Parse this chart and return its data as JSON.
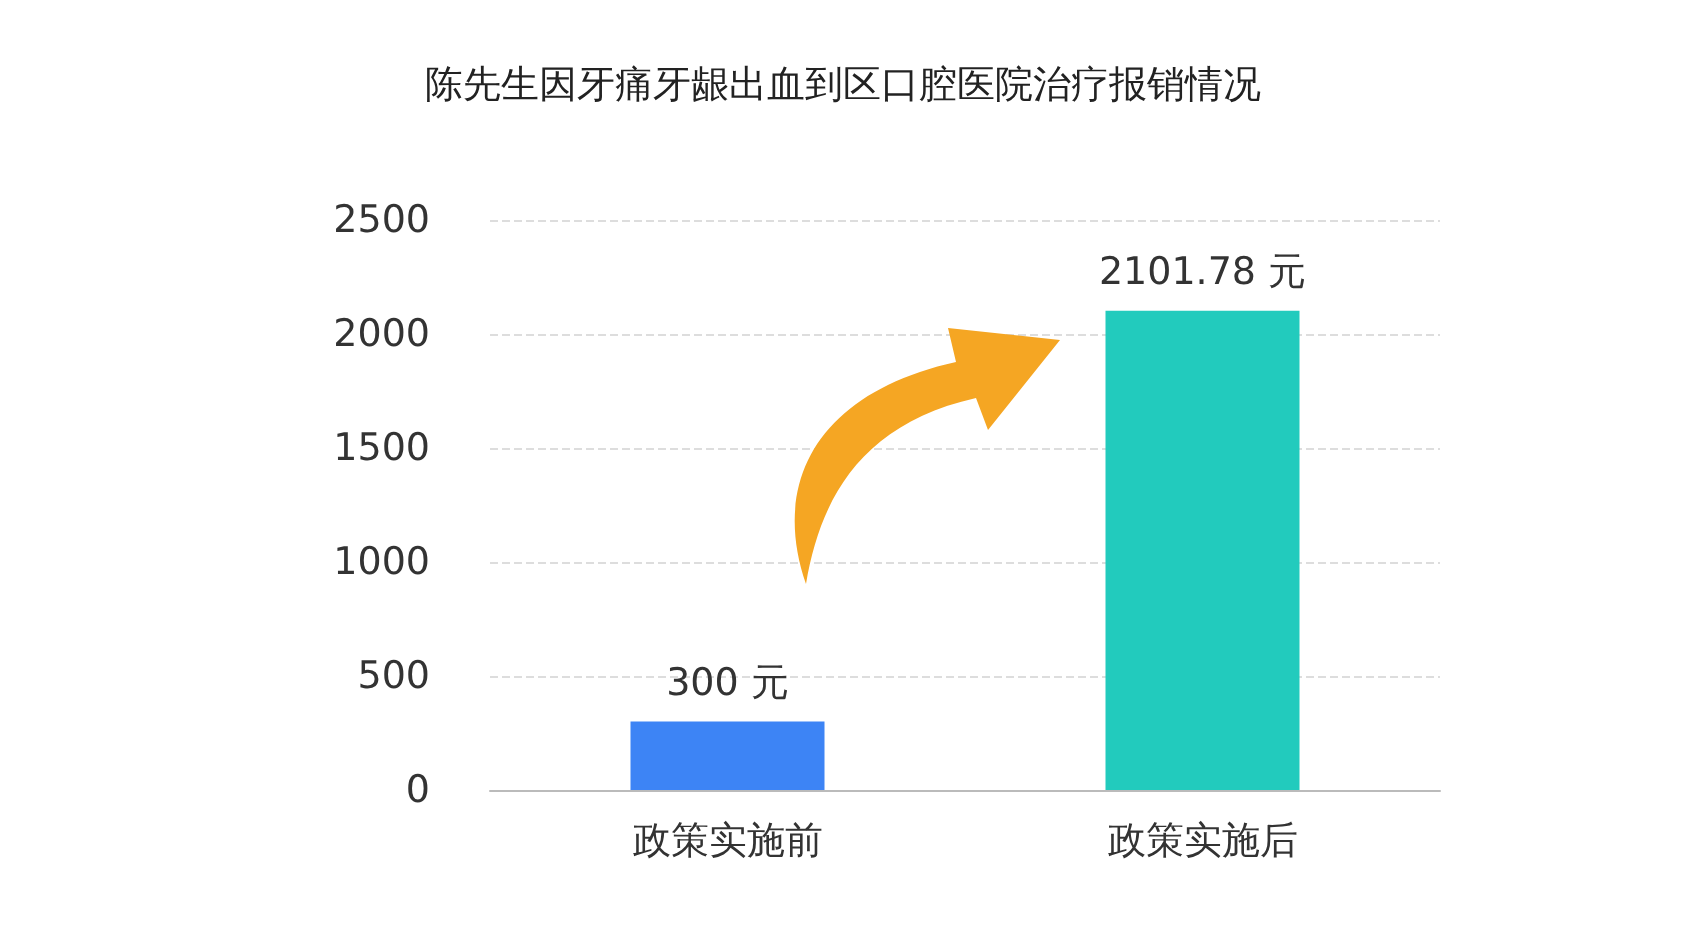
{
  "chart_data": {
    "type": "bar",
    "title": "陈先生因牙痛牙龈出血到区口腔医院治疗报销情况",
    "categories": [
      "政策实施前",
      "政策实施后"
    ],
    "values": [
      300,
      2101.78
    ],
    "colors": [
      "#3d84f5",
      "#22cbbd"
    ],
    "value_labels": [
      "300 元",
      "2101.78 元"
    ],
    "ylim": [
      0,
      2500
    ],
    "yticks": [
      0,
      500,
      1000,
      1500,
      2000,
      2500
    ],
    "grid": "y"
  }
}
